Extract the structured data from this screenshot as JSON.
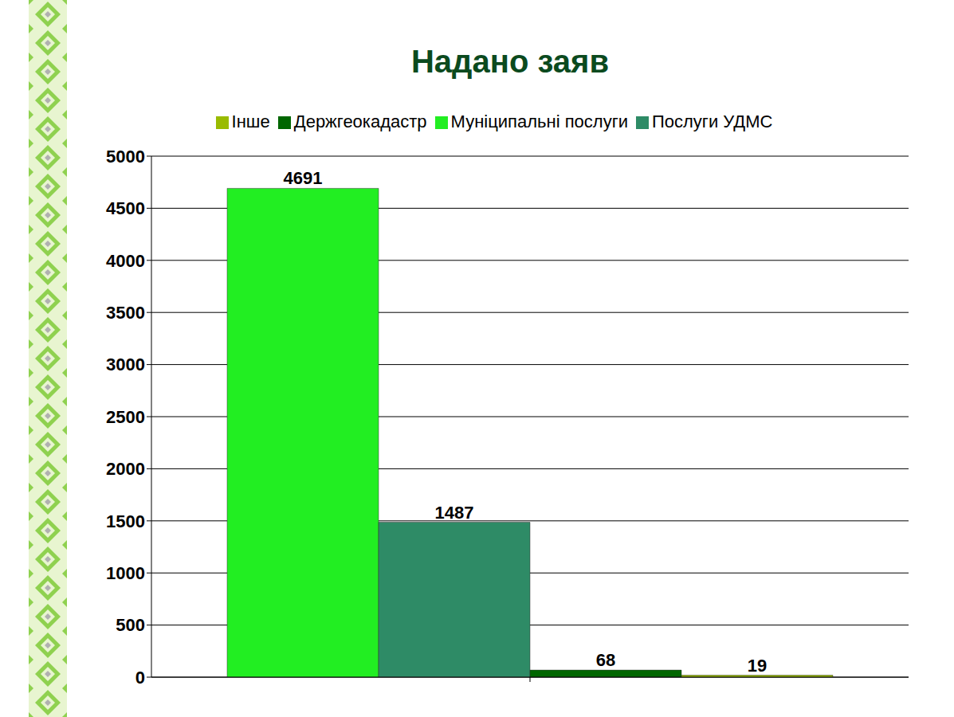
{
  "chart_data": {
    "type": "bar",
    "title": "Надано заяв",
    "categories": [
      null
    ],
    "series": [
      {
        "name": "Муніципальні послуги",
        "color": "#22ee22",
        "values": [
          4691
        ]
      },
      {
        "name": "Послуги УДМС",
        "color": "#2e8b66",
        "values": [
          1487
        ]
      },
      {
        "name": "Держгеокадастр",
        "color": "#006600",
        "values": [
          68
        ]
      },
      {
        "name": "Інше",
        "color": "#99bb00",
        "values": [
          19
        ]
      }
    ],
    "ylim": [
      0,
      5000
    ],
    "yticks": [
      0,
      500,
      1000,
      1500,
      2000,
      2500,
      3000,
      3500,
      4000,
      4500,
      5000
    ],
    "grid": true,
    "legend": "top",
    "data_labels": true
  }
}
